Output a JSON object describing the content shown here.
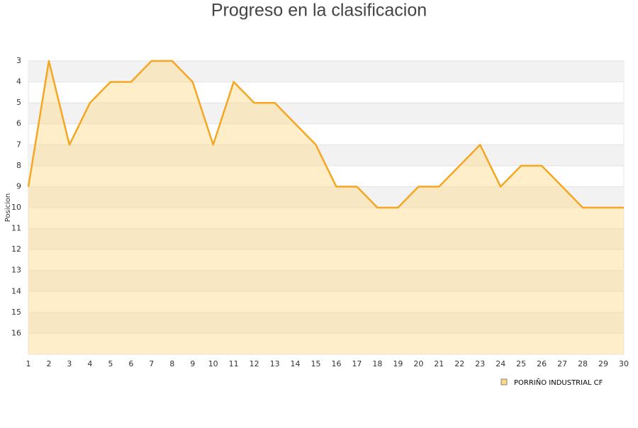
{
  "chart_data": {
    "type": "area",
    "title": "Progreso en la clasificacion",
    "ylabel": "Posicion",
    "x": [
      1,
      2,
      3,
      4,
      5,
      6,
      7,
      8,
      9,
      10,
      11,
      12,
      13,
      14,
      15,
      16,
      17,
      18,
      19,
      20,
      21,
      22,
      23,
      24,
      25,
      26,
      27,
      28,
      29,
      30
    ],
    "xlim": [
      1,
      30
    ],
    "xticks": [
      1,
      2,
      3,
      4,
      5,
      6,
      7,
      8,
      9,
      10,
      11,
      12,
      13,
      14,
      15,
      16,
      17,
      18,
      19,
      20,
      21,
      22,
      23,
      24,
      25,
      26,
      27,
      28,
      29,
      30
    ],
    "ylim": [
      17,
      3
    ],
    "yticks": [
      3,
      4,
      5,
      6,
      7,
      8,
      9,
      10,
      11,
      12,
      13,
      14,
      15,
      16
    ],
    "series": [
      {
        "name": "PORRIÑO INDUSTRIAL CF",
        "color": "#f5a623",
        "fill": "#ffd98a",
        "values": [
          9,
          3,
          7,
          5,
          4,
          4,
          3,
          3,
          4,
          7,
          4,
          5,
          5,
          6,
          7,
          9,
          9,
          10,
          10,
          9,
          9,
          8,
          7,
          9,
          8,
          8,
          9,
          10,
          10,
          10
        ]
      }
    ],
    "legend": "bottom-right",
    "grid": true
  }
}
